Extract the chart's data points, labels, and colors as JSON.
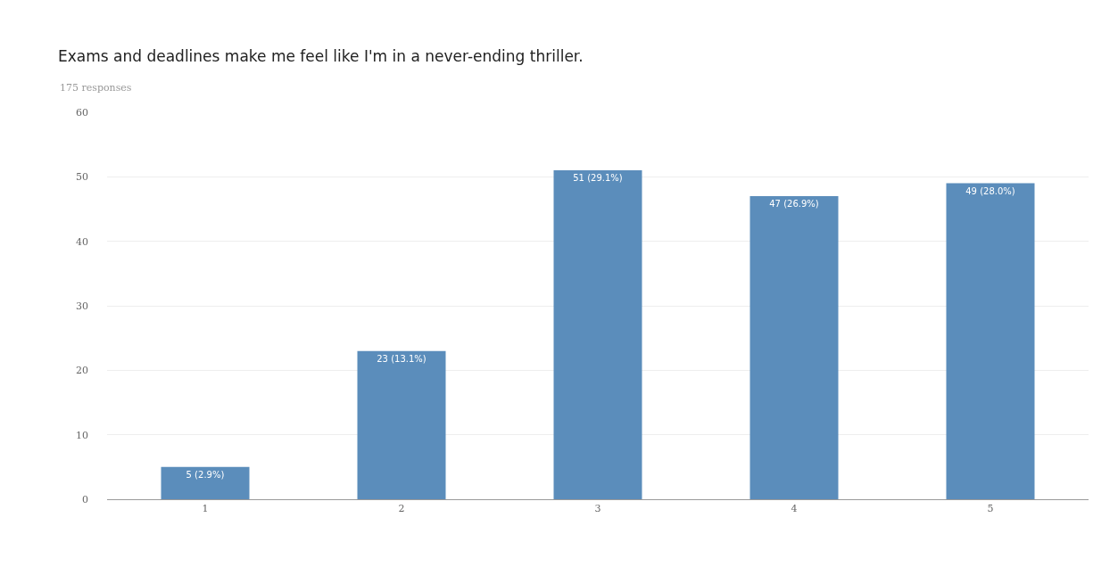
{
  "chart_data": {
    "type": "bar",
    "title": "Exams and deadlines make me feel like I'm in a never-ending thriller.",
    "subtitle": "175 responses",
    "categories": [
      "1",
      "2",
      "3",
      "4",
      "5"
    ],
    "values": [
      5,
      23,
      51,
      47,
      49
    ],
    "color": "#5b8dbb",
    "value_labels": [
      "5 (2.9%)",
      "23 (13.1%)",
      "51 (29.1%)",
      "47 (26.9%)",
      "49 (28.0%)"
    ],
    "ylim": [
      0,
      60
    ],
    "yticks": [
      0,
      10,
      20,
      30,
      40,
      50,
      60
    ],
    "grid": "y"
  }
}
